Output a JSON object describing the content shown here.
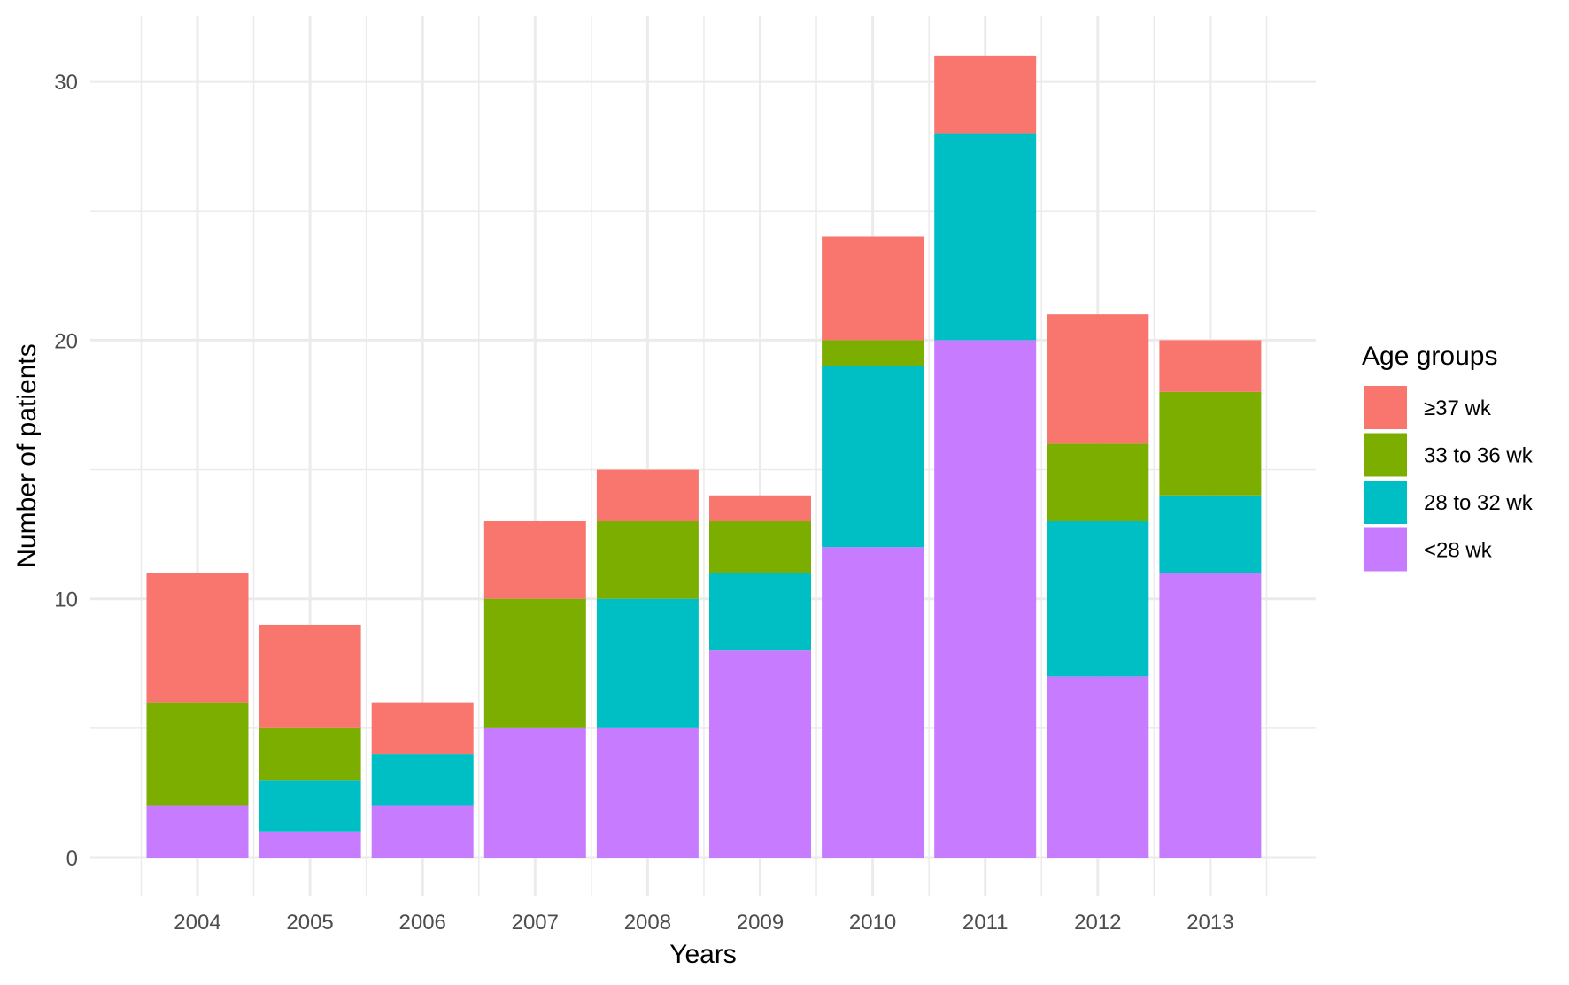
{
  "chart_data": {
    "type": "bar",
    "stacked": true,
    "title": "",
    "xlabel": "Years",
    "ylabel": "Number of patients",
    "ylim": [
      0,
      32
    ],
    "yticks": [
      0,
      10,
      20,
      30
    ],
    "grid": true,
    "categories": [
      "2004",
      "2005",
      "2006",
      "2007",
      "2008",
      "2009",
      "2010",
      "2011",
      "2012",
      "2013"
    ],
    "series": [
      {
        "name": "<28 wk",
        "color": "#C77CFF",
        "values": [
          2,
          1,
          2,
          5,
          5,
          8,
          12,
          20,
          7,
          11
        ]
      },
      {
        "name": "28 to 32 wk",
        "color": "#00BFC4",
        "values": [
          0,
          2,
          2,
          0,
          5,
          3,
          7,
          8,
          6,
          3
        ]
      },
      {
        "name": "33 to 36 wk",
        "color": "#7CAE00",
        "values": [
          4,
          2,
          0,
          5,
          3,
          2,
          1,
          0,
          3,
          4
        ]
      },
      {
        "name": "≥37 wk",
        "color": "#F8766D",
        "values": [
          5,
          4,
          2,
          3,
          2,
          1,
          4,
          3,
          5,
          2
        ]
      }
    ],
    "legend": {
      "title": "Age groups",
      "placement": "right",
      "order": [
        "≥37 wk",
        "33 to 36 wk",
        "28 to 32 wk",
        "<28 wk"
      ]
    }
  }
}
